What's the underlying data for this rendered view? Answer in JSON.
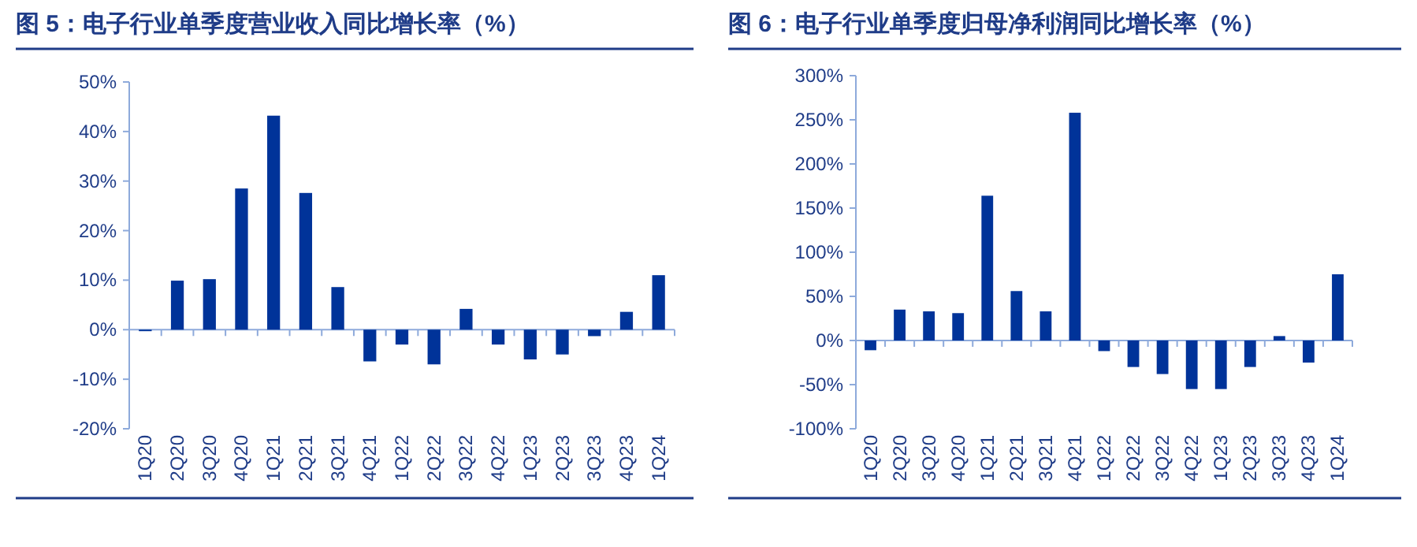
{
  "chart_data": [
    {
      "type": "bar",
      "title": "图 5：电子行业单季度营业收入同比增长率（%）",
      "categories": [
        "1Q20",
        "2Q20",
        "3Q20",
        "4Q20",
        "1Q21",
        "2Q21",
        "3Q21",
        "4Q21",
        "1Q22",
        "2Q22",
        "3Q22",
        "4Q22",
        "1Q23",
        "2Q23",
        "3Q23",
        "4Q23",
        "1Q24"
      ],
      "series": [
        {
          "color": "#003399",
          "values": [
            -0.3,
            9.9,
            10.2,
            28.5,
            43.2,
            27.6,
            8.6,
            -6.4,
            -3,
            -7,
            4.2,
            -3,
            -6,
            -5,
            -1.3,
            3.6,
            11.0
          ]
        }
      ],
      "ref_lines": [
        {
          "axis": "y",
          "value": 0,
          "color": "#8eaadb"
        }
      ],
      "ylim": [
        -20,
        50
      ],
      "yticks": [
        {
          "value": -20,
          "label": "-20%"
        },
        {
          "value": -10,
          "label": "-10%"
        },
        {
          "value": 0,
          "label": "0%"
        },
        {
          "value": 10,
          "label": "10%"
        },
        {
          "value": 20,
          "label": "20%"
        },
        {
          "value": 30,
          "label": "30%"
        },
        {
          "value": 40,
          "label": "40%"
        },
        {
          "value": 50,
          "label": "50%"
        }
      ]
    },
    {
      "type": "bar",
      "title": "图 6：电子行业单季度归母净利润同比增长率（%）",
      "categories": [
        "1Q20",
        "2Q20",
        "3Q20",
        "4Q20",
        "1Q21",
        "2Q21",
        "3Q21",
        "4Q21",
        "1Q22",
        "2Q22",
        "3Q22",
        "4Q22",
        "1Q23",
        "2Q23",
        "3Q23",
        "4Q23",
        "1Q24"
      ],
      "series": [
        {
          "color": "#003399",
          "values": [
            -11,
            35,
            33,
            31,
            164,
            56,
            33,
            258,
            -12,
            -30,
            -38,
            -55,
            -55,
            -30,
            5,
            -25,
            75
          ]
        }
      ],
      "ref_lines": [
        {
          "axis": "y",
          "value": 0,
          "color": "#8eaadb"
        }
      ],
      "ylim": [
        -100,
        300
      ],
      "yticks": [
        {
          "value": -100,
          "label": "-100%"
        },
        {
          "value": -50,
          "label": "-50%"
        },
        {
          "value": 0,
          "label": "0%"
        },
        {
          "value": 50,
          "label": "50%"
        },
        {
          "value": 100,
          "label": "100%"
        },
        {
          "value": 150,
          "label": "150%"
        },
        {
          "value": 200,
          "label": "200%"
        },
        {
          "value": 250,
          "label": "250%"
        },
        {
          "value": 300,
          "label": "300%"
        }
      ]
    }
  ]
}
